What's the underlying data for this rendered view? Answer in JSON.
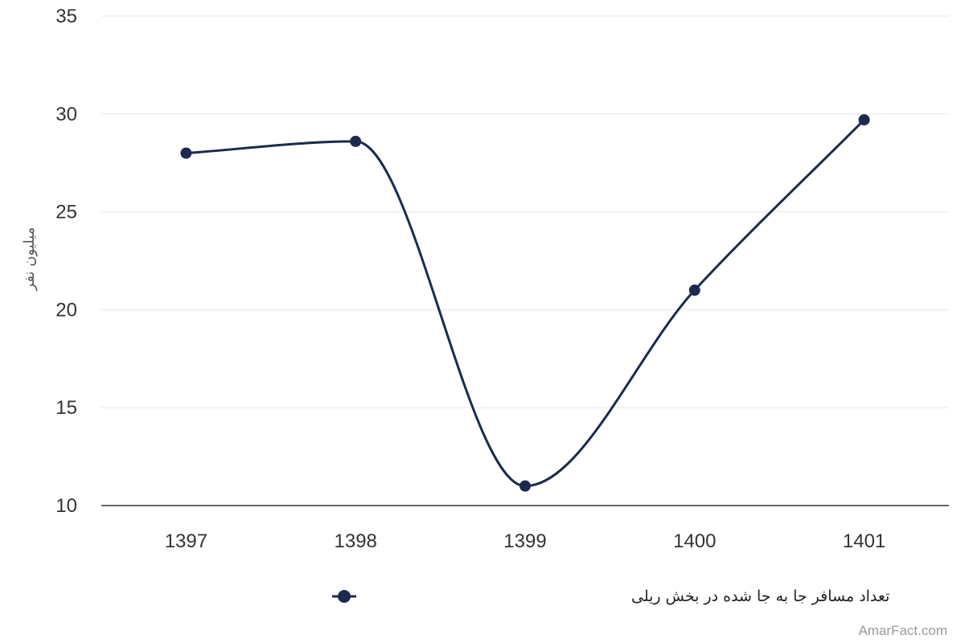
{
  "chart_data": {
    "type": "line",
    "categories": [
      "1397",
      "1398",
      "1399",
      "1400",
      "1401"
    ],
    "series": [
      {
        "name": "تعداد مسافر جا به جا شده در بخش ریلی",
        "values": [
          28.0,
          28.6,
          11.0,
          21.0,
          29.7
        ]
      }
    ],
    "title": "",
    "xlabel": "",
    "ylabel": "میلیون نفر",
    "ylim": [
      10,
      35
    ],
    "yticks": [
      "10",
      "15",
      "20",
      "25",
      "30",
      "35"
    ],
    "grid": true,
    "legend_position": "bottom-center",
    "smooth": true
  },
  "colors": {
    "series": "#1b2a4e",
    "grid": "#e6e6e6",
    "axis": "#333333"
  },
  "watermark": "AmarFact.com"
}
